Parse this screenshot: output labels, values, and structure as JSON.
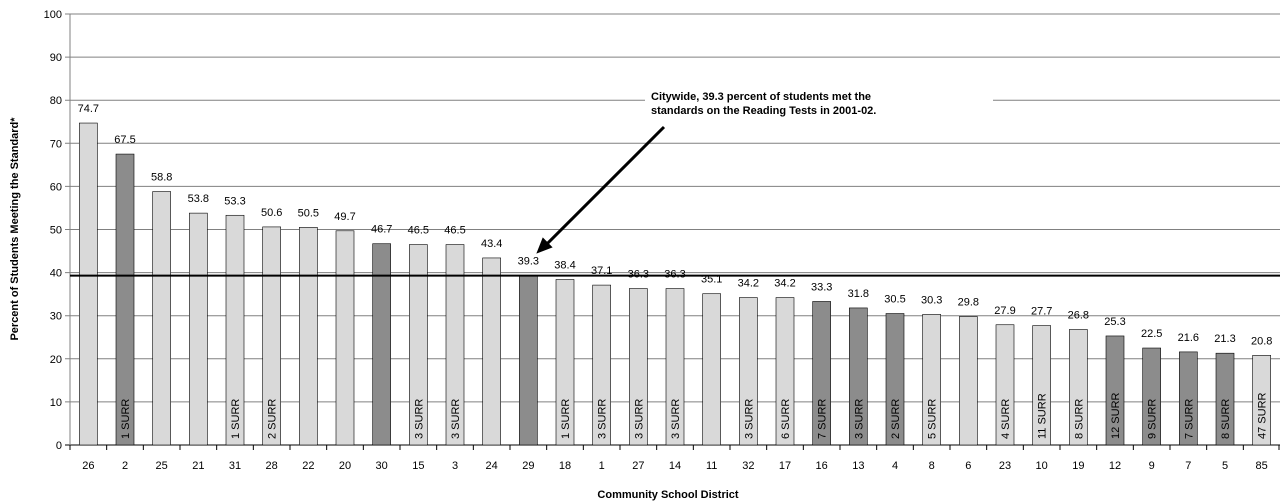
{
  "chart_data": {
    "type": "bar",
    "ylabel": "Percent of Students Meeting the Standard*",
    "xlabel": "Community School District",
    "ylim": [
      0,
      100
    ],
    "yticks": [
      0,
      10,
      20,
      30,
      40,
      50,
      60,
      70,
      80,
      90,
      100
    ],
    "grid": true,
    "reference_line": 39.3,
    "annotation": {
      "lines": [
        "Citywide, 39.3 percent of students met the",
        "standards on the Reading Tests in 2001-02."
      ],
      "points_to_category": "29"
    },
    "colors": {
      "light": "#d9d9d9",
      "dark": "#8c8c8c",
      "grid": "#808080",
      "reference": "#000000"
    },
    "categories": [
      "26",
      "2",
      "25",
      "21",
      "31",
      "28",
      "22",
      "20",
      "30",
      "15",
      "3",
      "24",
      "29",
      "18",
      "1",
      "27",
      "14",
      "11",
      "32",
      "17",
      "16",
      "13",
      "4",
      "8",
      "6",
      "23",
      "10",
      "19",
      "12",
      "9",
      "7",
      "5",
      "85"
    ],
    "values": [
      74.7,
      67.5,
      58.8,
      53.8,
      53.3,
      50.6,
      50.5,
      49.7,
      46.7,
      46.5,
      46.5,
      43.4,
      39.3,
      38.4,
      37.1,
      36.3,
      36.3,
      35.1,
      34.2,
      34.2,
      33.3,
      31.8,
      30.5,
      30.3,
      29.8,
      27.9,
      27.7,
      26.8,
      25.3,
      22.5,
      21.6,
      21.3,
      20.8
    ],
    "shade": [
      "light",
      "dark",
      "light",
      "light",
      "light",
      "light",
      "light",
      "light",
      "dark",
      "light",
      "light",
      "light",
      "dark",
      "light",
      "light",
      "light",
      "light",
      "light",
      "light",
      "light",
      "dark",
      "dark",
      "dark",
      "light",
      "light",
      "light",
      "light",
      "light",
      "dark",
      "dark",
      "dark",
      "dark",
      "light"
    ],
    "bar_notes": [
      "",
      "1 SURR",
      "",
      "",
      "1 SURR",
      "2 SURR",
      "",
      "",
      "",
      "3 SURR",
      "3 SURR",
      "",
      "",
      "1 SURR",
      "3 SURR",
      "3 SURR",
      "3 SURR",
      "",
      "3 SURR",
      "6 SURR",
      "7 SURR",
      "3 SURR",
      "2 SURR",
      "5 SURR",
      "",
      "4 SURR",
      "11 SURR",
      "8 SURR",
      "12 SURR",
      "9 SURR",
      "7 SURR",
      "8 SURR",
      "47 SURR"
    ]
  }
}
